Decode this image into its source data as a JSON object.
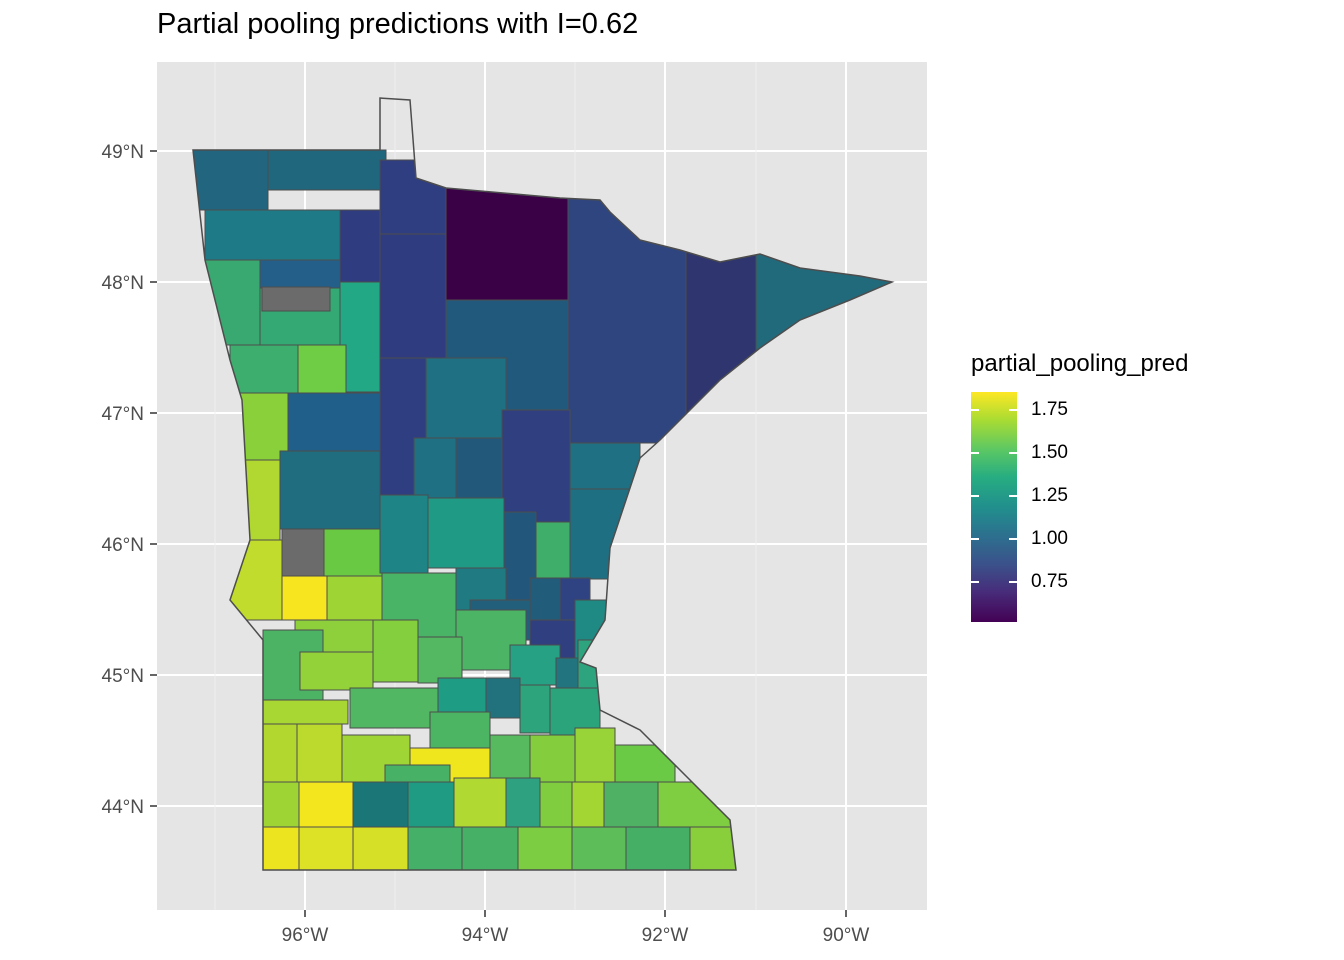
{
  "title": "Partial pooling predictions with I=0.62",
  "axes": {
    "x_ticks": [
      "96°W",
      "94°W",
      "92°W",
      "90°W"
    ],
    "y_ticks": [
      "49°N",
      "48°N",
      "47°N",
      "46°N",
      "45°N",
      "44°N"
    ]
  },
  "legend": {
    "title": "partial_pooling_pred",
    "labels": [
      "1.75",
      "1.50",
      "1.25",
      "1.00",
      "0.75"
    ],
    "range": [
      0.56,
      1.84
    ]
  },
  "colors": {
    "panel": "#e5e5e5",
    "grid": "#ffffff",
    "border": "#4d4d4d",
    "missing": "#6b6b6b"
  }
}
